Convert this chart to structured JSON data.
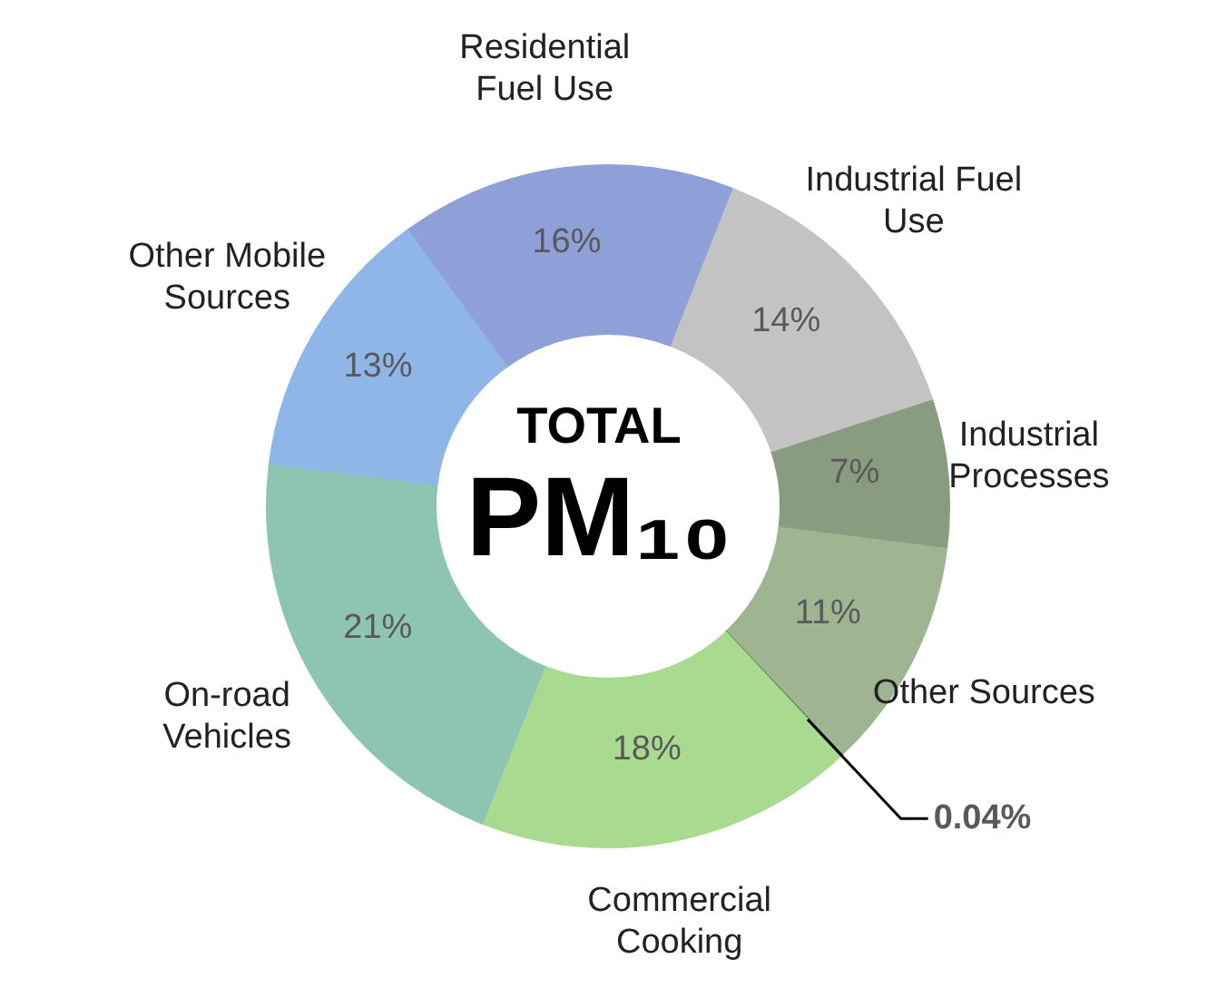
{
  "chart_data": {
    "type": "donut",
    "title": "TOTAL PM₁₀",
    "categories": [
      "Residential Fuel Use",
      "Industrial Fuel Use",
      "Industrial Processes",
      "Other Sources",
      null,
      "Commercial Cooking",
      "On-road Vehicles",
      "Other Mobile Sources"
    ],
    "values": [
      16,
      14,
      7,
      11,
      0.04,
      18,
      21,
      13
    ],
    "colors": [
      "#8f9fd8",
      "#c3c3c3",
      "#8a9c80",
      "#9fb592",
      "#3f5f36",
      "#a8da90",
      "#8ec4b2",
      "#90b6e8"
    ],
    "value_labels": [
      "16%",
      "14%",
      "7%",
      "11%",
      "0.04%",
      "18%",
      "21%",
      "13%"
    ]
  }
}
